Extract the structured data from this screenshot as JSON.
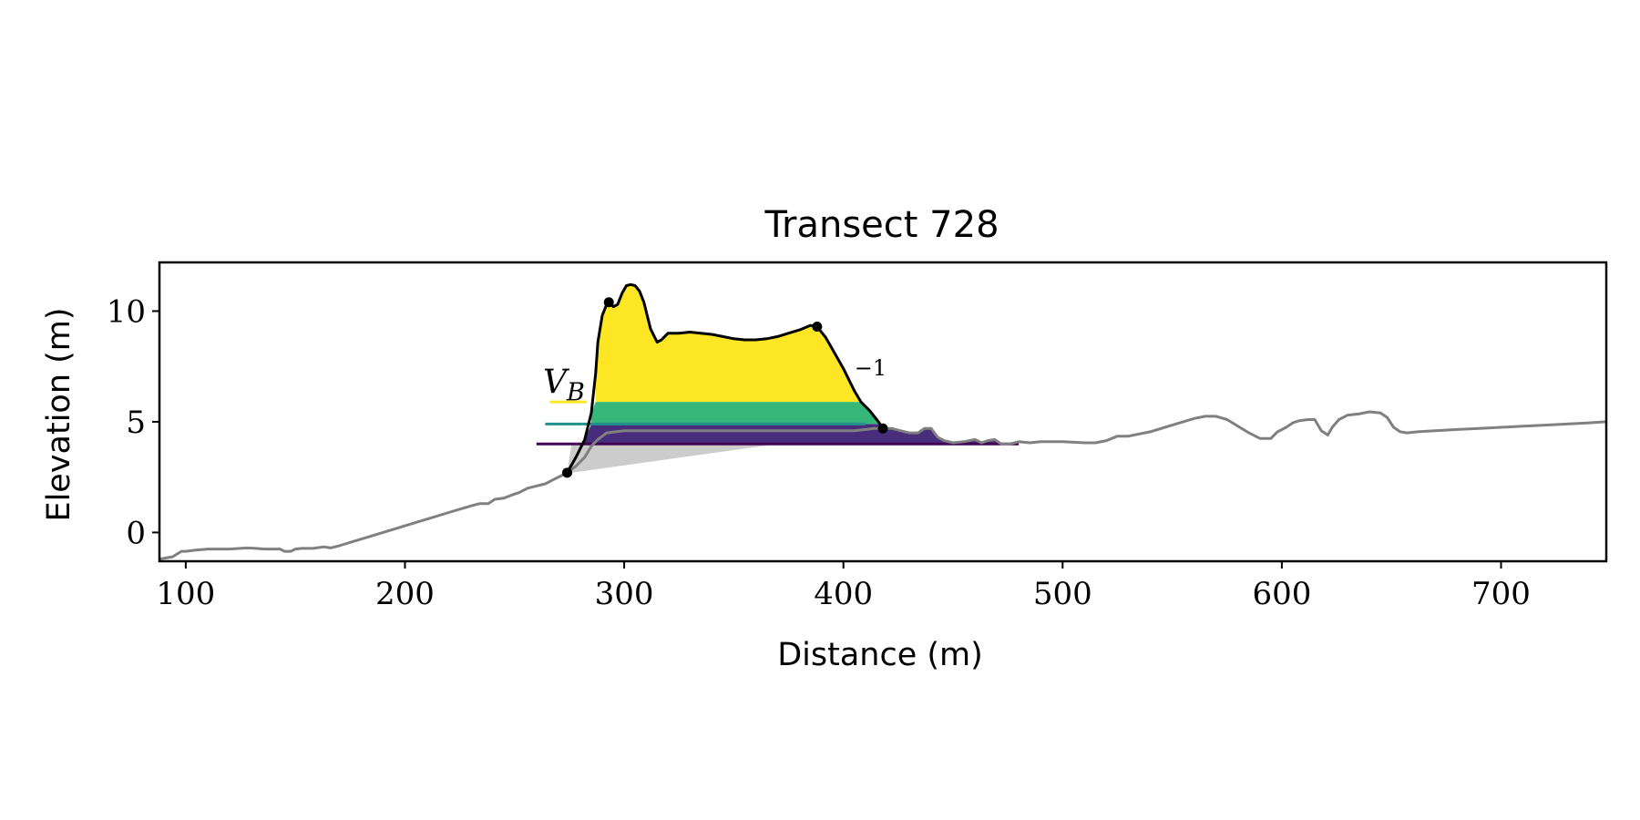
{
  "chart_data": {
    "type": "area",
    "title": "Transect 728",
    "xlabel": "Distance (m)",
    "ylabel": "Elevation (m)",
    "xlim": [
      88,
      748
    ],
    "ylim": [
      -1.3,
      12.2
    ],
    "xticks": [
      100,
      200,
      300,
      400,
      500,
      600,
      700
    ],
    "yticks": [
      0,
      5,
      10
    ],
    "grid": false,
    "colors": {
      "profile": "#808080",
      "dune": "#000000",
      "yellow": "#fde725",
      "teal": "#35b779",
      "teal_line": "#21918c",
      "purple": "#472d7b",
      "purple_line": "#440154",
      "gray_fill": "#cccccc"
    },
    "annotations": {
      "volume_label": "V_B",
      "volume_main": "V",
      "volume_sub": "B",
      "slope_label": "1"
    },
    "levels": [
      {
        "elevation": 5.9,
        "x_start": 266,
        "x_end": 283
      },
      {
        "elevation": 4.9,
        "x_start": 264,
        "x_end": 281
      },
      {
        "elevation": 4.0,
        "x_start": 260,
        "x_end": 278
      }
    ],
    "points": [
      {
        "x": 274,
        "y": 2.7
      },
      {
        "x": 293,
        "y": 10.4
      },
      {
        "x": 388,
        "y": 9.3
      },
      {
        "x": 418,
        "y": 4.7
      }
    ],
    "dune_profile": {
      "x": [
        274,
        278,
        282,
        285,
        287,
        288,
        290,
        292,
        293,
        295,
        297,
        299,
        301,
        303,
        305,
        307,
        309,
        312,
        315,
        317,
        320,
        325,
        330,
        335,
        340,
        345,
        350,
        355,
        360,
        365,
        370,
        375,
        380,
        385,
        388,
        392,
        396,
        400,
        405,
        408,
        412,
        416,
        418
      ],
      "y": [
        2.7,
        3.4,
        4.2,
        5.4,
        7.2,
        8.6,
        9.8,
        10.3,
        10.4,
        10.2,
        10.3,
        10.8,
        11.15,
        11.2,
        11.15,
        10.9,
        10.4,
        9.2,
        8.6,
        8.7,
        9.0,
        9.0,
        9.05,
        9.0,
        8.95,
        8.85,
        8.75,
        8.7,
        8.7,
        8.75,
        8.85,
        9.0,
        9.15,
        9.35,
        9.3,
        8.8,
        8.1,
        7.4,
        6.4,
        5.9,
        5.5,
        5.0,
        4.7
      ]
    },
    "series": [
      {
        "x": [
          88,
          94,
          98,
          100,
          104,
          110,
          120,
          128,
          132,
          136,
          140,
          143,
          145,
          148,
          150,
          153,
          158,
          163,
          166,
          170,
          180,
          190,
          200,
          210,
          220,
          230,
          234,
          238,
          241,
          245,
          249,
          252,
          256,
          260,
          264,
          268,
          271,
          274,
          278,
          282,
          285,
          288,
          292,
          300,
          310,
          330,
          350,
          370,
          390,
          405,
          410,
          414,
          418,
          422,
          426,
          430,
          434,
          437,
          440,
          443,
          446,
          450,
          455,
          460,
          463,
          466,
          469,
          472,
          476,
          480,
          485,
          490,
          500,
          510,
          515,
          520,
          525,
          530,
          540,
          550,
          560,
          565,
          570,
          575,
          580,
          585,
          590,
          595,
          598,
          602,
          605,
          608,
          612,
          615,
          618,
          621,
          623,
          626,
          628,
          630,
          635,
          640,
          645,
          648,
          651,
          654,
          657,
          662,
          670,
          680,
          690,
          700,
          710,
          720,
          730,
          740,
          748
        ],
        "y": [
          -1.2,
          -1.1,
          -0.85,
          -0.85,
          -0.8,
          -0.75,
          -0.75,
          -0.7,
          -0.72,
          -0.75,
          -0.75,
          -0.75,
          -0.85,
          -0.85,
          -0.75,
          -0.72,
          -0.72,
          -0.65,
          -0.7,
          -0.6,
          -0.3,
          0.0,
          0.3,
          0.6,
          0.9,
          1.2,
          1.3,
          1.3,
          1.5,
          1.55,
          1.7,
          1.8,
          2.0,
          2.1,
          2.2,
          2.4,
          2.55,
          2.7,
          3.0,
          3.4,
          3.9,
          4.2,
          4.5,
          4.6,
          4.6,
          4.6,
          4.6,
          4.6,
          4.6,
          4.6,
          4.65,
          4.7,
          4.7,
          4.7,
          4.6,
          4.5,
          4.5,
          4.7,
          4.7,
          4.3,
          4.15,
          4.05,
          4.1,
          4.2,
          4.05,
          4.15,
          4.2,
          4.0,
          4.0,
          4.1,
          4.05,
          4.1,
          4.1,
          4.05,
          4.05,
          4.15,
          4.35,
          4.35,
          4.55,
          4.85,
          5.15,
          5.25,
          5.25,
          5.1,
          4.8,
          4.5,
          4.25,
          4.25,
          4.55,
          4.75,
          4.95,
          5.05,
          5.1,
          5.1,
          4.6,
          4.4,
          4.75,
          5.1,
          5.2,
          5.3,
          5.35,
          5.45,
          5.4,
          5.2,
          4.75,
          4.55,
          4.5,
          4.55,
          4.6,
          4.65,
          4.7,
          4.75,
          4.8,
          4.85,
          4.9,
          4.95,
          5.0
        ]
      }
    ]
  }
}
